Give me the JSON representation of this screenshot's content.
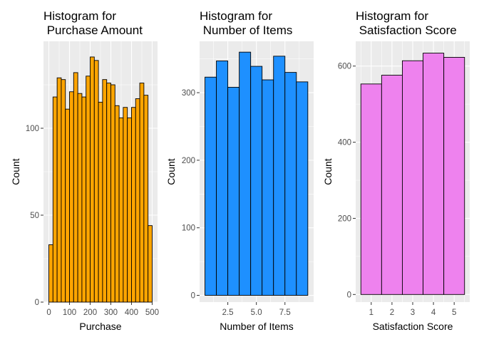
{
  "chart_data": [
    {
      "type": "bar",
      "title_lines": [
        "Histogram for",
        "Purchase Amount"
      ],
      "xlabel": "Purchase",
      "ylabel": "Count",
      "fill": "#FFA500",
      "x_range": [
        -26,
        526
      ],
      "ylim": [
        0,
        150
      ],
      "x_ticks": [
        {
          "value": 0,
          "label": "0"
        },
        {
          "value": 100,
          "label": "100"
        },
        {
          "value": 200,
          "label": "200"
        },
        {
          "value": 300,
          "label": "300"
        },
        {
          "value": 400,
          "label": "400"
        },
        {
          "value": 500,
          "label": "500"
        }
      ],
      "y_ticks": [
        {
          "value": 0,
          "label": "0"
        },
        {
          "value": 50,
          "label": "50"
        },
        {
          "value": 100,
          "label": "100"
        }
      ],
      "y_minor": [
        25,
        75,
        125
      ],
      "bins": [
        {
          "x0": 0,
          "x1": 20,
          "count": 33
        },
        {
          "x0": 20,
          "x1": 40,
          "count": 118
        },
        {
          "x0": 40,
          "x1": 60,
          "count": 129
        },
        {
          "x0": 60,
          "x1": 80,
          "count": 128
        },
        {
          "x0": 80,
          "x1": 100,
          "count": 111
        },
        {
          "x0": 100,
          "x1": 120,
          "count": 121
        },
        {
          "x0": 120,
          "x1": 140,
          "count": 132
        },
        {
          "x0": 140,
          "x1": 160,
          "count": 120
        },
        {
          "x0": 160,
          "x1": 180,
          "count": 118
        },
        {
          "x0": 180,
          "x1": 200,
          "count": 130
        },
        {
          "x0": 200,
          "x1": 220,
          "count": 141
        },
        {
          "x0": 220,
          "x1": 240,
          "count": 139
        },
        {
          "x0": 240,
          "x1": 260,
          "count": 115
        },
        {
          "x0": 260,
          "x1": 280,
          "count": 128
        },
        {
          "x0": 280,
          "x1": 300,
          "count": 126
        },
        {
          "x0": 300,
          "x1": 320,
          "count": 125
        },
        {
          "x0": 320,
          "x1": 340,
          "count": 113
        },
        {
          "x0": 340,
          "x1": 360,
          "count": 106
        },
        {
          "x0": 360,
          "x1": 380,
          "count": 112
        },
        {
          "x0": 380,
          "x1": 400,
          "count": 106
        },
        {
          "x0": 400,
          "x1": 420,
          "count": 112
        },
        {
          "x0": 420,
          "x1": 440,
          "count": 117
        },
        {
          "x0": 440,
          "x1": 460,
          "count": 126
        },
        {
          "x0": 460,
          "x1": 480,
          "count": 119
        },
        {
          "x0": 480,
          "x1": 500,
          "count": 44
        }
      ]
    },
    {
      "type": "bar",
      "title_lines": [
        "Histogram for",
        "Number of Items"
      ],
      "xlabel": "Number of Items",
      "ylabel": "Count",
      "fill": "#1E90FF",
      "x_range": [
        0.03,
        10.01
      ],
      "ylim": [
        -10,
        376
      ],
      "x_ticks": [
        {
          "value": 2.5,
          "label": "2.5"
        },
        {
          "value": 5,
          "label": "5.0"
        },
        {
          "value": 7.5,
          "label": "7.5"
        }
      ],
      "y_ticks": [
        {
          "value": 0,
          "label": "0"
        },
        {
          "value": 100,
          "label": "100"
        },
        {
          "value": 200,
          "label": "200"
        },
        {
          "value": 300,
          "label": "300"
        }
      ],
      "y_minor": [
        50,
        150,
        250,
        350
      ],
      "bins": [
        {
          "x0": 0.5,
          "x1": 1.5,
          "count": 323
        },
        {
          "x0": 1.5,
          "x1": 2.5,
          "count": 347
        },
        {
          "x0": 2.5,
          "x1": 3.5,
          "count": 308
        },
        {
          "x0": 3.5,
          "x1": 4.5,
          "count": 360
        },
        {
          "x0": 4.5,
          "x1": 5.5,
          "count": 339
        },
        {
          "x0": 5.5,
          "x1": 6.5,
          "count": 319
        },
        {
          "x0": 6.5,
          "x1": 7.5,
          "count": 354
        },
        {
          "x0": 7.5,
          "x1": 8.5,
          "count": 330
        },
        {
          "x0": 8.5,
          "x1": 9.5,
          "count": 316
        }
      ]
    },
    {
      "type": "bar",
      "title_lines": [
        "Histogram for",
        "Satisfaction Score"
      ],
      "xlabel": "Satisfaction Score",
      "ylabel": "Count",
      "fill": "#EE82EE",
      "x_range": [
        0.25,
        5.75
      ],
      "ylim": [
        -20,
        665
      ],
      "x_ticks": [
        {
          "value": 1,
          "label": "1"
        },
        {
          "value": 2,
          "label": "2"
        },
        {
          "value": 3,
          "label": "3"
        },
        {
          "value": 4,
          "label": "4"
        },
        {
          "value": 5,
          "label": "5"
        }
      ],
      "y_ticks": [
        {
          "value": 0,
          "label": "0"
        },
        {
          "value": 200,
          "label": "200"
        },
        {
          "value": 400,
          "label": "400"
        },
        {
          "value": 600,
          "label": "600"
        }
      ],
      "y_minor": [
        100,
        300,
        500
      ],
      "bins": [
        {
          "x0": 0.5,
          "x1": 1.5,
          "count": 553
        },
        {
          "x0": 1.5,
          "x1": 2.5,
          "count": 576
        },
        {
          "x0": 2.5,
          "x1": 3.5,
          "count": 614
        },
        {
          "x0": 3.5,
          "x1": 4.5,
          "count": 634
        },
        {
          "x0": 4.5,
          "x1": 5.5,
          "count": 623
        }
      ]
    }
  ]
}
